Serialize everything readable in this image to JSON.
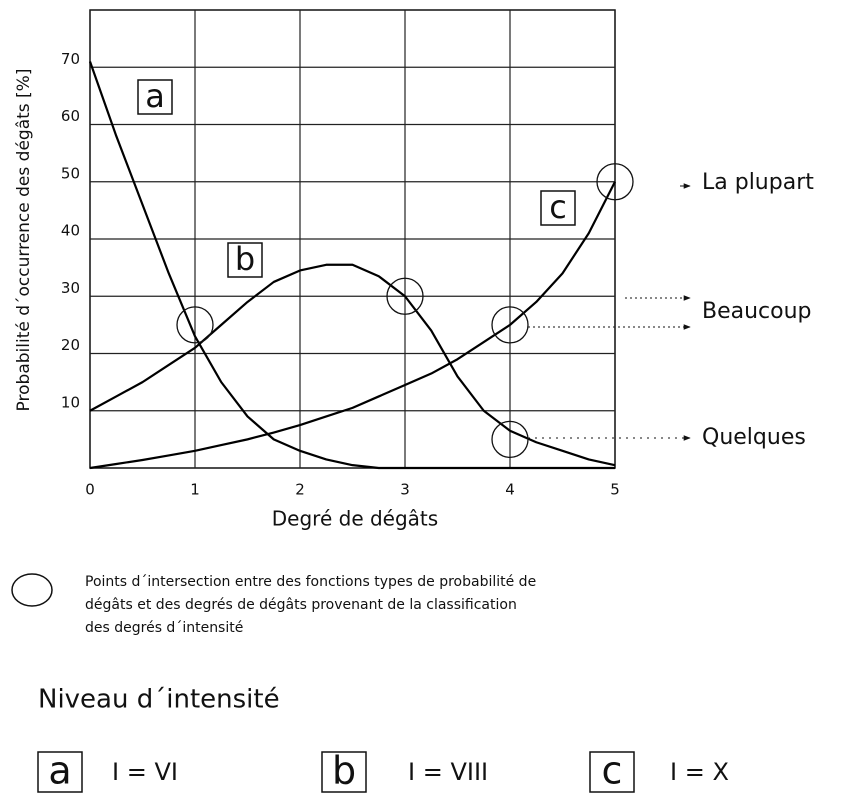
{
  "chart_data": {
    "type": "line",
    "ylabel": "Probabilité d´occurrence des dégâts [%]",
    "xlabel": "Degré de dégâts",
    "x": [
      0,
      0.25,
      0.5,
      0.75,
      1,
      1.25,
      1.5,
      1.75,
      2,
      2.25,
      2.5,
      2.75,
      3,
      3.25,
      3.5,
      3.75,
      4,
      4.25,
      4.5,
      4.75,
      5
    ],
    "series": [
      {
        "name": "a",
        "color": "#000000",
        "values": [
          71,
          58,
          46,
          34,
          23,
          15,
          9,
          5,
          3,
          1.5,
          0.5,
          0,
          0,
          0,
          0,
          0,
          0,
          0,
          0,
          0,
          0
        ]
      },
      {
        "name": "b",
        "color": "#000000",
        "values": [
          10,
          12.5,
          15,
          18,
          21,
          25,
          29,
          32.5,
          34.5,
          35.5,
          35.5,
          33.5,
          30,
          24,
          16,
          10,
          6.5,
          4.5,
          3,
          1.5,
          0.5
        ]
      },
      {
        "name": "c",
        "color": "#000000",
        "values": [
          0,
          0.7,
          1.4,
          2.2,
          3,
          4,
          5,
          6.2,
          7.5,
          9,
          10.5,
          12.5,
          14.5,
          16.5,
          19,
          22,
          25,
          29,
          34,
          41,
          50
        ]
      }
    ],
    "xlim": [
      0,
      5
    ],
    "ylim": [
      0,
      80
    ],
    "xticks": [
      0,
      1,
      2,
      3,
      4,
      5
    ],
    "yticks": [
      10,
      20,
      30,
      40,
      50,
      60,
      70
    ],
    "grid": true,
    "circles": [
      {
        "x": 1,
        "y": 25
      },
      {
        "x": 3,
        "y": 30
      },
      {
        "x": 4,
        "y": 25
      },
      {
        "x": 4,
        "y": 5
      },
      {
        "x": 5,
        "y": 50
      }
    ],
    "annotations": [
      "La plupart",
      "Beaucoup",
      "Quelques"
    ]
  },
  "legend_note": [
    "Points d´intersection entre des fonctions types de probabilité de",
    "dégâts et des degrés de dégâts provenant de la classification",
    "des degrés d´intensité"
  ],
  "intensity": {
    "title": "Niveau d´intensité",
    "items": [
      {
        "letter": "a",
        "label": "I = VI"
      },
      {
        "letter": "b",
        "label": "I = VIII"
      },
      {
        "letter": "c",
        "label": "I = X"
      }
    ]
  }
}
